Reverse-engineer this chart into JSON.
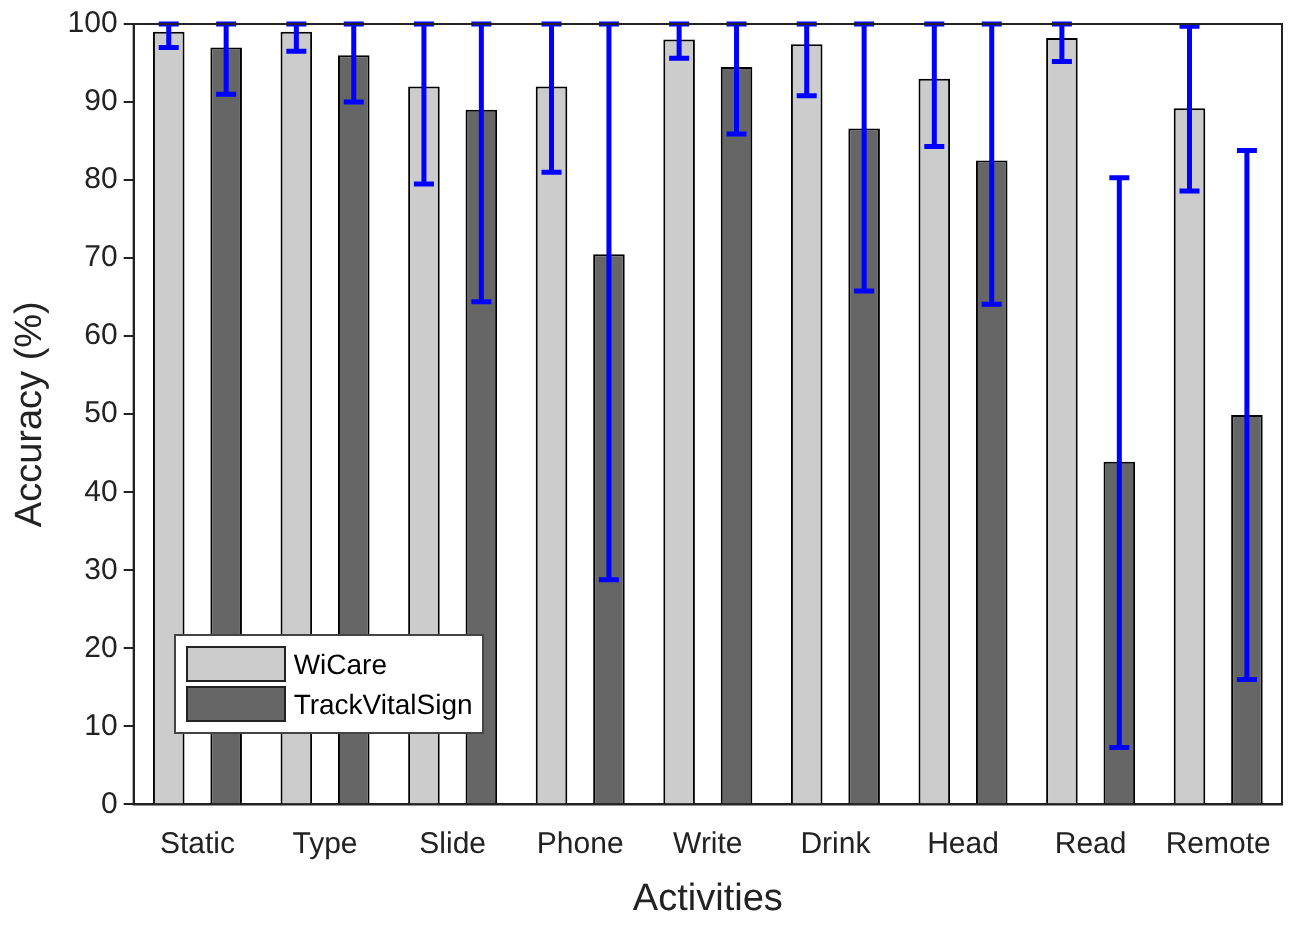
{
  "chart_data": {
    "type": "bar",
    "xlabel": "Activities",
    "ylabel": "Accuracy (%)",
    "categories": [
      "Static",
      "Type",
      "Slide",
      "Phone",
      "Write",
      "Drink",
      "Head",
      "Read",
      "Remote"
    ],
    "series": [
      {
        "name": "WiCare",
        "color": "#cccccc",
        "values": [
          99,
          99,
          92,
          92,
          98,
          97.4,
          93,
          98.2,
          89.2
        ],
        "errors": [
          [
            97,
            100
          ],
          [
            96.5,
            100
          ],
          [
            79.5,
            100
          ],
          [
            81,
            100
          ],
          [
            95.6,
            100
          ],
          [
            90.8,
            100
          ],
          [
            84.3,
            100
          ],
          [
            95.2,
            100
          ],
          [
            78.6,
            99.7
          ]
        ]
      },
      {
        "name": "TrackVitalSign",
        "color": "#666666",
        "values": [
          97,
          96,
          89,
          70.5,
          94.5,
          86.6,
          82.5,
          43.9,
          49.9
        ],
        "errors": [
          [
            91,
            100
          ],
          [
            90,
            100
          ],
          [
            64.4,
            100
          ],
          [
            28.8,
            100
          ],
          [
            85.9,
            100
          ],
          [
            65.8,
            100
          ],
          [
            64.1,
            100
          ],
          [
            7.3,
            80.3
          ],
          [
            16,
            83.8
          ]
        ]
      }
    ],
    "ylim": [
      0,
      100
    ],
    "yticks": [
      0,
      10,
      20,
      30,
      40,
      50,
      60,
      70,
      80,
      90,
      100
    ],
    "grid": false,
    "legend": "bottom left"
  }
}
